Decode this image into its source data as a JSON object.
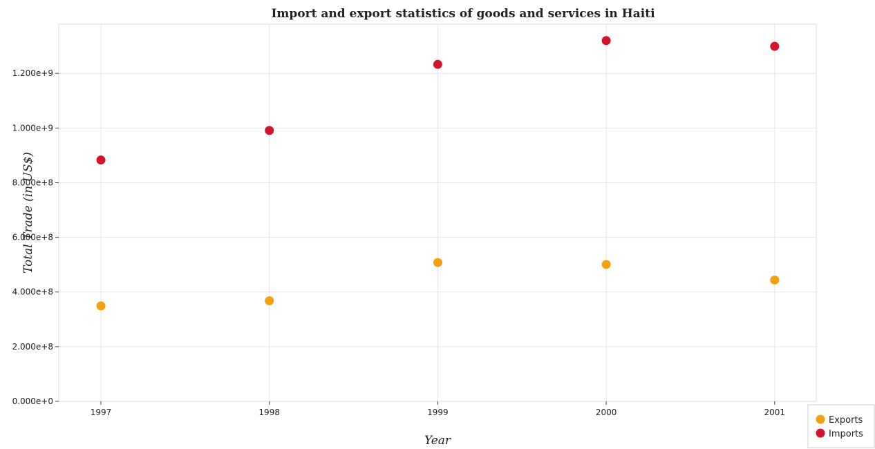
{
  "chart_data": {
    "type": "scatter",
    "title": "Import and export statistics of goods and services in Haiti",
    "xlabel": "Year",
    "ylabel": "Total Trade (in US$)",
    "categories": [
      "1997",
      "1998",
      "1999",
      "2000",
      "2001"
    ],
    "ylim": [
      0,
      1380000000
    ],
    "yticks": [
      0,
      200000000,
      400000000,
      600000000,
      800000000,
      1000000000,
      1200000000
    ],
    "ytick_labels": [
      "0.000e+0",
      "2.000e+8",
      "4.000e+8",
      "6.000e+8",
      "8.000e+8",
      "1.000e+9",
      "1.200e+9"
    ],
    "grid": true,
    "legend_position": "bottom-right",
    "series": [
      {
        "name": "Exports",
        "color": "#f5a010",
        "values": [
          349000000,
          368000000,
          508000000,
          501000000,
          444000000
        ]
      },
      {
        "name": "Imports",
        "color": "#d4142a",
        "values": [
          883000000,
          991000000,
          1233000000,
          1320000000,
          1299000000
        ]
      }
    ]
  }
}
